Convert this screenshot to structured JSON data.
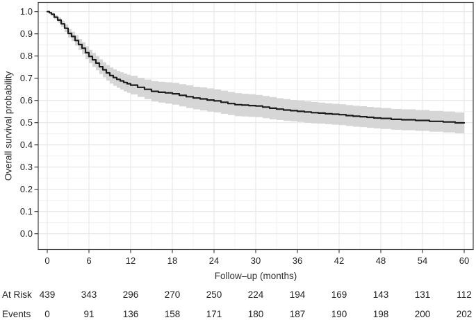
{
  "colors": {
    "background": "#ffffff",
    "curve_line": "#1c1c1c",
    "ci_band_fill": "#d2d2d2",
    "panel_border": "#3c3c3c",
    "tick_mark": "#333333",
    "grid_major": "#e6e6e6",
    "grid_minor": "#f2f2f2",
    "tick_text": "#1f1f1f",
    "axis_title_text": "#333333"
  },
  "chart_data": {
    "type": "line",
    "variant": "kaplan-meier-step-with-ci-band",
    "title": "",
    "xlabel": "Follow–up (months)",
    "ylabel": "Overall survival probability",
    "xlim": [
      0,
      60
    ],
    "ylim": [
      0.0,
      1.0
    ],
    "x_ticks": [
      0,
      6,
      12,
      18,
      24,
      30,
      36,
      42,
      48,
      54,
      60
    ],
    "y_ticks": [
      0.0,
      0.1,
      0.2,
      0.3,
      0.4,
      0.5,
      0.6,
      0.7,
      0.8,
      0.9,
      1.0
    ],
    "grid": "major and minor gridlines, light gray on white panel",
    "legend": "none",
    "series": [
      {
        "name": "Overall survival",
        "line_color": "#1c1c1c",
        "ci_fill_color": "#d2d2d2",
        "x": [
          0,
          0.3,
          0.6,
          1,
          1.5,
          2,
          2.5,
          3,
          3.5,
          4,
          4.5,
          5,
          5.5,
          6,
          6.5,
          7,
          7.5,
          8,
          8.5,
          9,
          9.5,
          10,
          10.5,
          11,
          11.5,
          12,
          13,
          14,
          15,
          16,
          17,
          18,
          19,
          20,
          21,
          22,
          23,
          24,
          25,
          26,
          27,
          28,
          29,
          30,
          31,
          32,
          33,
          34,
          35,
          36,
          37,
          38,
          39,
          40,
          41,
          42,
          43,
          44,
          45,
          46,
          47,
          48,
          49.5,
          51,
          53,
          55,
          57,
          58.7,
          60
        ],
        "surv": [
          1,
          0.995,
          0.988,
          0.975,
          0.962,
          0.945,
          0.925,
          0.902,
          0.888,
          0.87,
          0.852,
          0.835,
          0.815,
          0.798,
          0.783,
          0.768,
          0.752,
          0.738,
          0.724,
          0.712,
          0.703,
          0.695,
          0.688,
          0.681,
          0.675,
          0.669,
          0.659,
          0.65,
          0.641,
          0.637,
          0.634,
          0.63,
          0.623,
          0.617,
          0.611,
          0.607,
          0.602,
          0.598,
          0.592,
          0.586,
          0.581,
          0.579,
          0.577,
          0.575,
          0.57,
          0.565,
          0.561,
          0.557,
          0.554,
          0.551,
          0.548,
          0.545,
          0.543,
          0.54,
          0.538,
          0.536,
          0.532,
          0.529,
          0.527,
          0.524,
          0.521,
          0.519,
          0.515,
          0.513,
          0.51,
          0.506,
          0.503,
          0.499,
          0.499
        ],
        "lower": [
          1,
          0.991,
          0.982,
          0.966,
          0.95,
          0.931,
          0.908,
          0.883,
          0.867,
          0.847,
          0.827,
          0.808,
          0.786,
          0.768,
          0.752,
          0.736,
          0.719,
          0.704,
          0.689,
          0.676,
          0.666,
          0.657,
          0.649,
          0.641,
          0.634,
          0.627,
          0.616,
          0.606,
          0.595,
          0.59,
          0.586,
          0.581,
          0.573,
          0.566,
          0.56,
          0.555,
          0.55,
          0.546,
          0.54,
          0.534,
          0.529,
          0.528,
          0.526,
          0.525,
          0.52,
          0.515,
          0.512,
          0.508,
          0.506,
          0.503,
          0.5,
          0.497,
          0.496,
          0.493,
          0.491,
          0.489,
          0.485,
          0.482,
          0.48,
          0.477,
          0.474,
          0.472,
          0.468,
          0.466,
          0.463,
          0.459,
          0.456,
          0.452,
          0.452
        ],
        "upper": [
          1,
          0.999,
          0.994,
          0.984,
          0.974,
          0.959,
          0.942,
          0.921,
          0.909,
          0.893,
          0.877,
          0.862,
          0.844,
          0.828,
          0.814,
          0.8,
          0.785,
          0.772,
          0.759,
          0.748,
          0.74,
          0.733,
          0.727,
          0.721,
          0.716,
          0.711,
          0.702,
          0.694,
          0.687,
          0.684,
          0.682,
          0.679,
          0.673,
          0.668,
          0.662,
          0.659,
          0.654,
          0.65,
          0.644,
          0.638,
          0.633,
          0.63,
          0.628,
          0.625,
          0.62,
          0.615,
          0.61,
          0.606,
          0.602,
          0.599,
          0.596,
          0.593,
          0.59,
          0.587,
          0.585,
          0.583,
          0.579,
          0.576,
          0.574,
          0.571,
          0.568,
          0.566,
          0.562,
          0.56,
          0.557,
          0.553,
          0.55,
          0.546,
          0.546
        ]
      }
    ],
    "risk_table": {
      "times": [
        0,
        6,
        12,
        18,
        24,
        30,
        36,
        42,
        48,
        54,
        60
      ],
      "rows": [
        {
          "label": "At Risk",
          "values": [
            439,
            343,
            296,
            270,
            250,
            224,
            194,
            169,
            143,
            131,
            112
          ]
        },
        {
          "label": "Events",
          "values": [
            0,
            91,
            136,
            158,
            171,
            180,
            187,
            190,
            198,
            200,
            202
          ]
        }
      ]
    }
  }
}
